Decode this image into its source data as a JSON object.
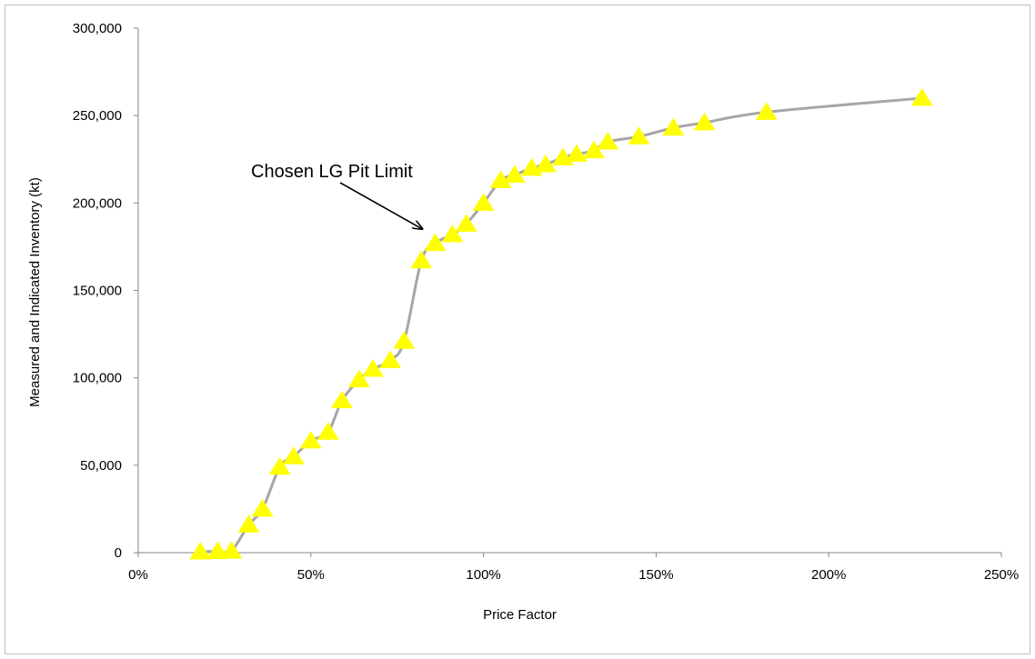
{
  "chart_data": {
    "type": "line",
    "title": "",
    "xlabel": "Price Factor",
    "ylabel": "Measured and Indicated Inventory (kt)",
    "xlim": [
      0,
      2.5
    ],
    "ylim": [
      0,
      300000
    ],
    "x_ticks": [
      0,
      0.5,
      1.0,
      1.5,
      2.0,
      2.5
    ],
    "x_tick_labels": [
      "0%",
      "50%",
      "100%",
      "150%",
      "200%",
      "250%"
    ],
    "y_ticks": [
      0,
      50000,
      100000,
      150000,
      200000,
      250000,
      300000
    ],
    "y_tick_labels": [
      "0",
      "50,000",
      "100,000",
      "150,000",
      "200,000",
      "250,000",
      "300,000"
    ],
    "grid": false,
    "legend": "none",
    "series": [
      {
        "color": "#a6a6a6",
        "marker": "triangle",
        "marker_color": "#ffff00",
        "points": [
          [
            0.18,
            500
          ],
          [
            0.23,
            800
          ],
          [
            0.27,
            1000
          ],
          [
            0.32,
            16000
          ],
          [
            0.36,
            25000
          ],
          [
            0.41,
            49000
          ],
          [
            0.45,
            55000
          ],
          [
            0.5,
            64000
          ],
          [
            0.55,
            69000
          ],
          [
            0.59,
            87000
          ],
          [
            0.64,
            99000
          ],
          [
            0.68,
            105000
          ],
          [
            0.73,
            110000
          ],
          [
            0.77,
            121000
          ],
          [
            0.82,
            167000
          ],
          [
            0.86,
            177000
          ],
          [
            0.91,
            182000
          ],
          [
            0.95,
            188000
          ],
          [
            1.0,
            200000
          ],
          [
            1.05,
            213000
          ],
          [
            1.09,
            216000
          ],
          [
            1.14,
            220000
          ],
          [
            1.18,
            222000
          ],
          [
            1.23,
            226000
          ],
          [
            1.27,
            228000
          ],
          [
            1.32,
            230000
          ],
          [
            1.36,
            235000
          ],
          [
            1.45,
            238000
          ],
          [
            1.55,
            243000
          ],
          [
            1.64,
            246000
          ],
          [
            1.82,
            252000
          ],
          [
            2.27,
            260000
          ]
        ]
      }
    ],
    "annotations": [
      {
        "text": "Chosen LG Pit Limit",
        "x": 0.86,
        "y": 183000
      }
    ]
  }
}
